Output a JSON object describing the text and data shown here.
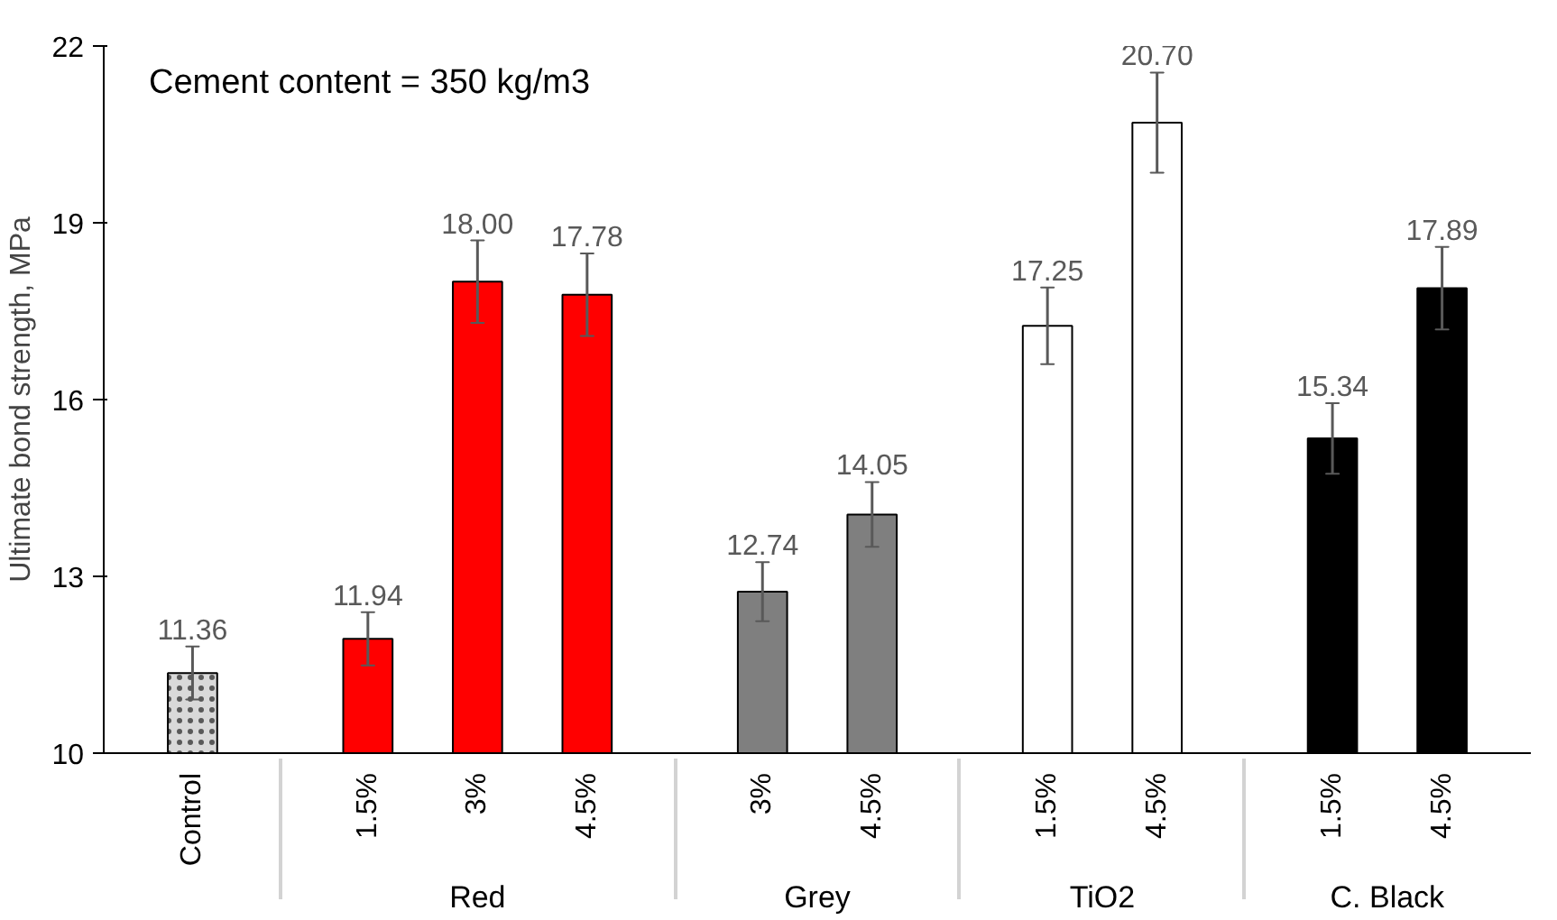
{
  "chart_data": {
    "type": "bar",
    "ylabel": "Ultimate bond strength, MPa",
    "categories": [
      "Control",
      "1.5%",
      "3%",
      "4.5%",
      "3%",
      "4.5%",
      "1.5%",
      "4.5%",
      "1.5%",
      "4.5%"
    ],
    "values": [
      11.36,
      11.94,
      18.0,
      17.78,
      12.74,
      14.05,
      17.25,
      20.7,
      15.34,
      17.89
    ],
    "value_labels": [
      "11.36",
      "11.94",
      "18.00",
      "17.78",
      "12.74",
      "14.05",
      "17.25",
      "20.70",
      "15.34",
      "17.89"
    ],
    "errors": [
      0.45,
      0.45,
      0.7,
      0.7,
      0.5,
      0.55,
      0.65,
      0.85,
      0.6,
      0.7
    ],
    "colors": [
      "#d9d9d9",
      "#ff0000",
      "#ff0000",
      "#ff0000",
      "#7f7f7f",
      "#7f7f7f",
      "#ffffff",
      "#ffffff",
      "#000000",
      "#000000"
    ],
    "ylim": [
      10,
      22
    ],
    "yticks": [
      10,
      13,
      16,
      19,
      22
    ],
    "grid": false,
    "annotations": [
      "Cement content = 350 kg/m3",
      "Red",
      "Grey",
      "TiO2",
      "C. Black"
    ]
  }
}
